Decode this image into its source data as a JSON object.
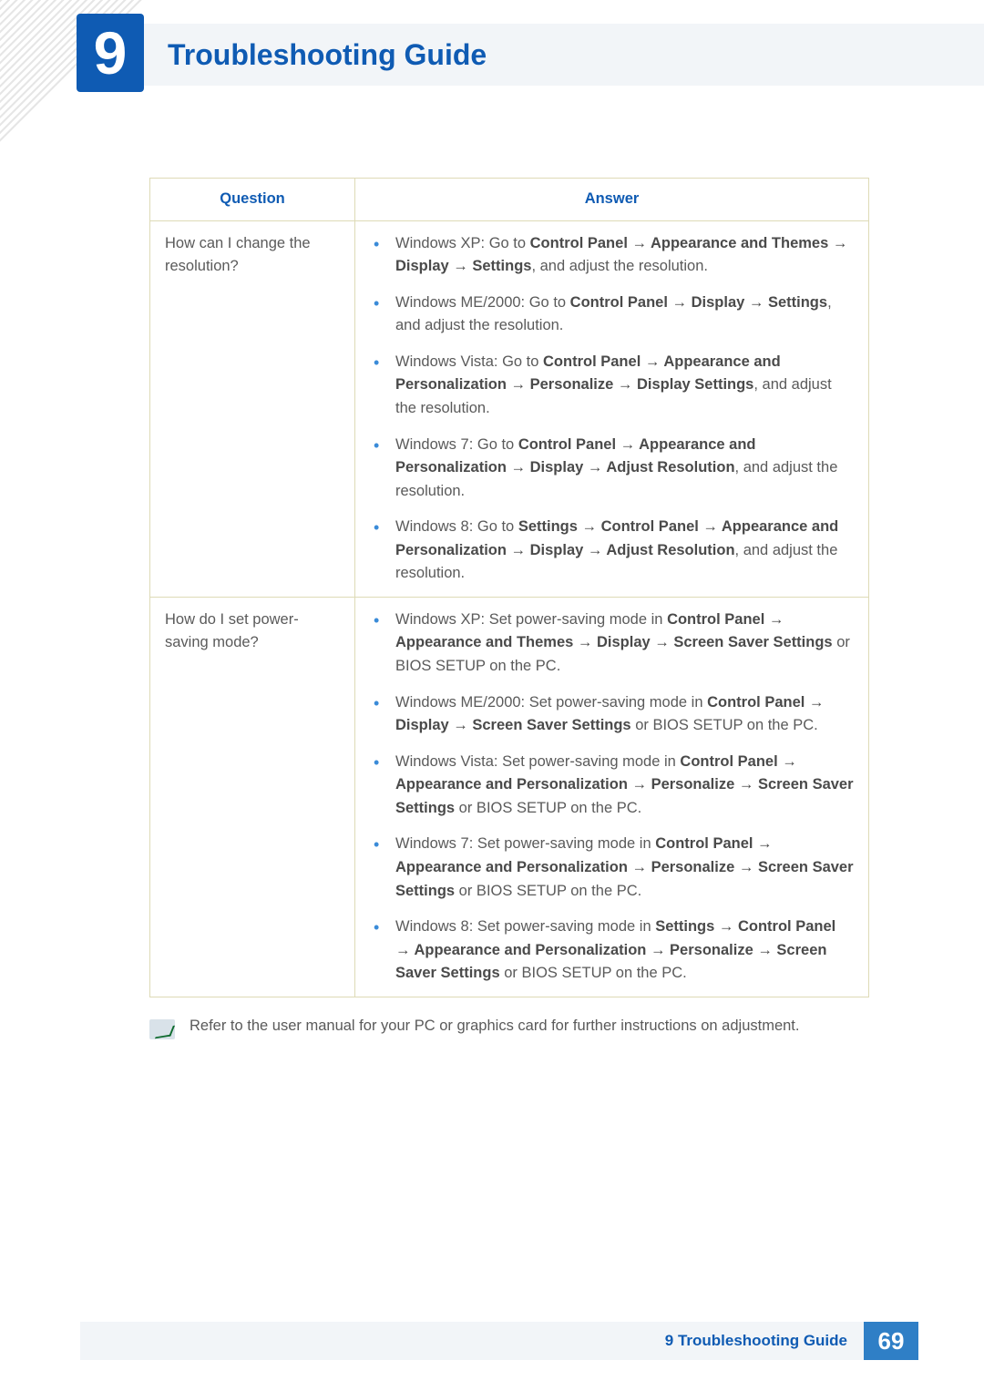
{
  "chapter": {
    "number": "9",
    "title": "Troubleshooting Guide"
  },
  "table": {
    "headers": {
      "q": "Question",
      "a": "Answer"
    },
    "rows": [
      {
        "question": "How can I change the resolution?",
        "answers": [
          {
            "prefix": "Windows XP: Go to ",
            "path": "Control Panel → Appearance and Themes → Display → Settings",
            "suffix": ", and adjust the resolution."
          },
          {
            "prefix": "Windows ME/2000: Go to ",
            "path": "Control Panel → Display → Settings",
            "suffix": ", and adjust the resolution."
          },
          {
            "prefix": "Windows Vista: Go to ",
            "path": "Control Panel → Appearance and Personalization → Personalize → Display Settings",
            "suffix": ", and adjust the resolution."
          },
          {
            "prefix": "Windows 7: Go to ",
            "path": "Control Panel → Appearance and Personalization → Display → Adjust Resolution",
            "suffix": ", and adjust the resolution."
          },
          {
            "prefix": "Windows 8: Go to ",
            "path": "Settings → Control Panel → Appearance and Personalization → Display → Adjust Resolution",
            "suffix": ", and adjust the resolution."
          }
        ]
      },
      {
        "question": "How do I set power-saving mode?",
        "answers": [
          {
            "prefix": "Windows XP: Set power-saving mode in ",
            "path": "Control Panel → Appearance and Themes → Display → Screen Saver Settings",
            "suffix": " or BIOS SETUP on the PC."
          },
          {
            "prefix": "Windows ME/2000: Set power-saving mode in ",
            "path": "Control Panel → Display → Screen Saver Settings",
            "suffix": " or BIOS SETUP on the PC."
          },
          {
            "prefix": "Windows Vista: Set power-saving mode in ",
            "path": "Control Panel → Appearance and Personalization → Personalize → Screen Saver Settings",
            "suffix": " or BIOS SETUP on the PC."
          },
          {
            "prefix": "Windows 7: Set power-saving mode in ",
            "path": "Control Panel → Appearance and Personalization → Personalize → Screen Saver Settings",
            "suffix": " or BIOS SETUP on the PC."
          },
          {
            "prefix": "Windows 8: Set power-saving mode in ",
            "path": "Settings → Control Panel → Appearance and Personalization → Personalize → Screen Saver Settings",
            "suffix": " or BIOS SETUP on the PC."
          }
        ]
      }
    ]
  },
  "footnote": "Refer to the user manual for your PC or graphics card for further instructions on adjustment.",
  "footer": {
    "label": "9 Troubleshooting Guide",
    "page": "69"
  },
  "colors": {
    "brand": "#0f5bb3",
    "header_bg": "#f2f5f8",
    "border": "#dedab6",
    "bullet": "#3a8bd8",
    "page_bg": "#2f7fc6"
  }
}
